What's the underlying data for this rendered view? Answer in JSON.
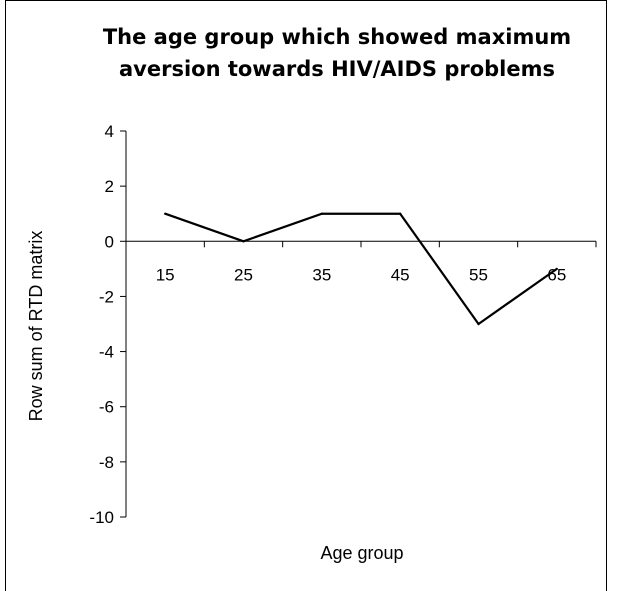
{
  "chart_data": {
    "type": "line",
    "title_lines": [
      "The age group which showed maximum",
      "aversion towards HIV/AIDS problems"
    ],
    "xlabel": "Age group",
    "ylabel": "Row sum of RTD matrix",
    "x": [
      15,
      25,
      35,
      45,
      55,
      65
    ],
    "x_tick_labels": [
      "15",
      "25",
      "35",
      "45",
      "55",
      "65"
    ],
    "y_tick_labels": [
      "4",
      "2",
      "0",
      "-2",
      "-4",
      "-6",
      "-8",
      "-10"
    ],
    "y_ticks": [
      4,
      2,
      0,
      -2,
      -4,
      -6,
      -8,
      -10
    ],
    "ylim": [
      -10,
      4
    ],
    "series": [
      {
        "values": [
          1,
          0,
          1,
          1,
          -3,
          -1
        ],
        "color": "#000000"
      }
    ],
    "grid": false,
    "legend": "none"
  }
}
